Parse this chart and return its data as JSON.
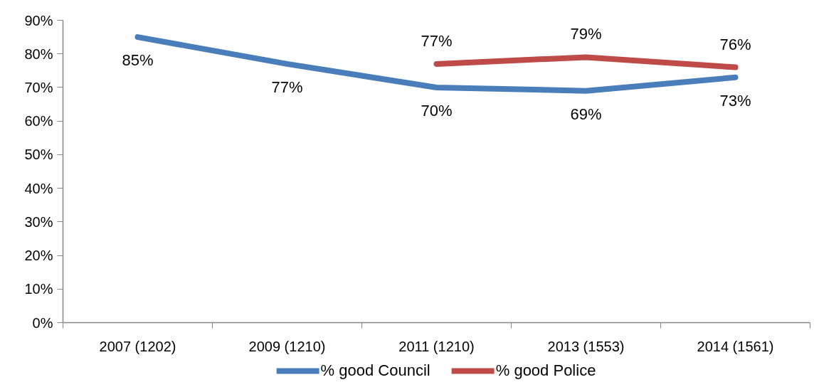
{
  "chart_data": {
    "type": "line",
    "categories": [
      "2007 (1202)",
      "2009 (1210)",
      "2011 (1210)",
      "2013 (1553)",
      "2014 (1561)"
    ],
    "series": [
      {
        "name": "% good Council",
        "color": "#4a7ebb",
        "values": [
          85,
          77,
          70,
          69,
          73
        ],
        "value_labels": [
          "85%",
          "77%",
          "70%",
          "69%",
          "73%"
        ]
      },
      {
        "name": "% good Police",
        "color": "#be4b48",
        "values": [
          null,
          null,
          77,
          79,
          76
        ],
        "value_labels": [
          null,
          null,
          "77%",
          "79%",
          "76%"
        ]
      }
    ],
    "ylim": [
      0,
      90
    ],
    "yticks": [
      {
        "value": 0,
        "label": "0%"
      },
      {
        "value": 10,
        "label": "10%"
      },
      {
        "value": 20,
        "label": "20%"
      },
      {
        "value": 30,
        "label": "30%"
      },
      {
        "value": 40,
        "label": "40%"
      },
      {
        "value": 50,
        "label": "50%"
      },
      {
        "value": 60,
        "label": "60%"
      },
      {
        "value": 70,
        "label": "70%"
      },
      {
        "value": 80,
        "label": "80%"
      },
      {
        "value": 90,
        "label": "90%"
      }
    ],
    "legend": "bottom"
  }
}
